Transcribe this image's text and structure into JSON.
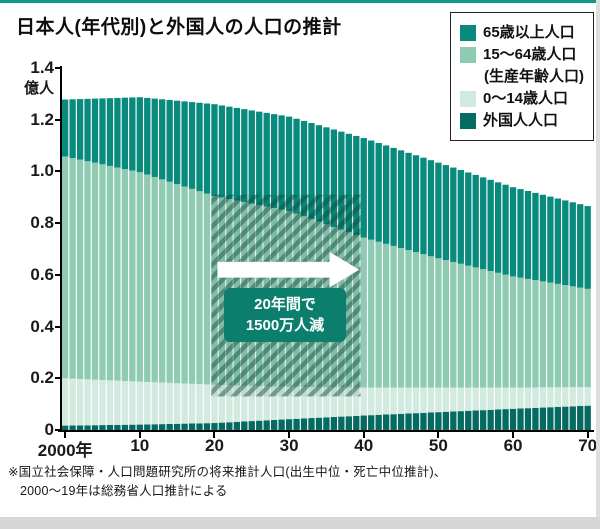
{
  "page": {
    "title": "日本人(年代別)と外国人の人口の推計",
    "footnote_line1": "※国立社会保障・人口問題研究所の将来推計人口(出生中位・死亡中位推計)、",
    "footnote_line2": "2000〜19年は総務省人口推計による"
  },
  "legend": {
    "items": [
      {
        "label": "65歳以上人口",
        "color": "#088a7c",
        "swatch": true
      },
      {
        "label": "15〜64歳人口",
        "color": "#8fcab2",
        "swatch": true
      },
      {
        "label": "(生産年齢人口)",
        "color": "",
        "swatch": false
      },
      {
        "label": "0〜14歳人口",
        "color": "#d2eae0",
        "swatch": true
      },
      {
        "label": "外国人人口",
        "color": "#056b62",
        "swatch": true
      }
    ]
  },
  "annotation": {
    "line1": "20年間で",
    "line2": "1500万人減",
    "box_color": "#0b7e6d"
  },
  "chart_data": {
    "type": "bar",
    "stacked": true,
    "title": "日本人(年代別)と外国人の人口の推計",
    "unit_label": "億人",
    "ylim": [
      0,
      1.4
    ],
    "y_ticks": [
      0,
      0.2,
      0.4,
      0.6,
      0.8,
      1.0,
      1.2,
      1.4
    ],
    "y_tick_labels": [
      "0",
      "0.2",
      "0.4",
      "0.6",
      "0.8",
      "1.0",
      "1.2",
      "1.4"
    ],
    "x_anchor_years": [
      2000,
      2010,
      2020,
      2030,
      2040,
      2050,
      2060,
      2070
    ],
    "x_tick_labels": [
      "2000年",
      "10",
      "20",
      "30",
      "40",
      "50",
      "60",
      "70"
    ],
    "x_range_years": [
      2000,
      2070
    ],
    "series": [
      {
        "name": "外国人人口",
        "color": "#056b62",
        "values": [
          0.017,
          0.021,
          0.027,
          0.042,
          0.056,
          0.069,
          0.082,
          0.094
        ]
      },
      {
        "name": "0〜14歳人口",
        "color": "#d2eae0",
        "values": [
          0.183,
          0.166,
          0.148,
          0.125,
          0.108,
          0.095,
          0.082,
          0.072
        ]
      },
      {
        "name": "15〜64歳人口",
        "color": "#8fcab2",
        "values": [
          0.858,
          0.81,
          0.73,
          0.68,
          0.58,
          0.5,
          0.43,
          0.38
        ]
      },
      {
        "name": "65歳以上人口",
        "color": "#088a7c",
        "values": [
          0.22,
          0.29,
          0.355,
          0.365,
          0.385,
          0.37,
          0.345,
          0.32
        ]
      }
    ],
    "hatch_region": {
      "x_start": 2020,
      "x_end": 2040,
      "y_bottom": 0.13,
      "y_top": 0.91
    },
    "arrow": {
      "x_start": 2020,
      "x_end": 2039,
      "y": 0.62
    },
    "annotation_text": "20年間で1500万人減",
    "legend_position": "top-right",
    "grid": false
  }
}
